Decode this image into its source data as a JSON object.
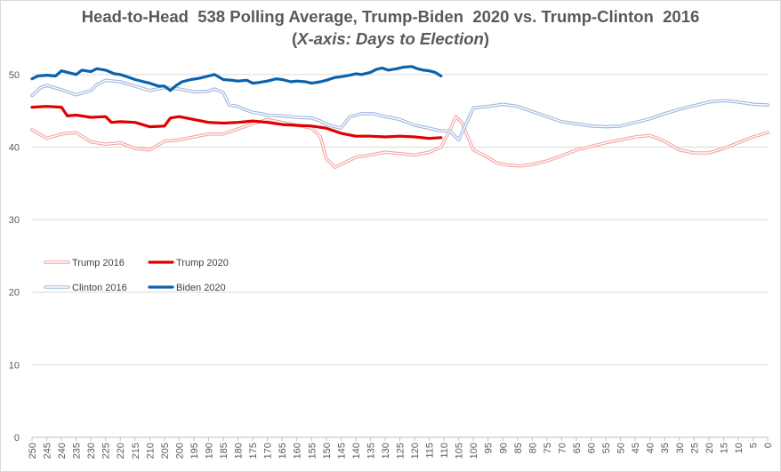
{
  "chart_data": {
    "type": "line",
    "title": "Head-to-Head  538 Polling Average, Trump-Biden  2020 vs. Trump-Clinton  2016",
    "subtitle": "(X-axis: Days to Election)",
    "subtitle_open": "(",
    "subtitle_italic": "X-axis: Days to Election",
    "subtitle_close": ")",
    "xlabel": "",
    "ylabel": "",
    "x_reversed": true,
    "xlim": [
      250,
      0
    ],
    "ylim": [
      0,
      55
    ],
    "y_ticks": [
      0,
      10,
      20,
      30,
      40,
      50
    ],
    "x_tick_step": 5,
    "grid": "horizontal",
    "legend_position": "left-middle",
    "series": [
      {
        "name": "Trump 2016",
        "color": "#f4a4a4",
        "style": "double",
        "points": [
          [
            250,
            42.4
          ],
          [
            245,
            41.2
          ],
          [
            240,
            41.8
          ],
          [
            235,
            42.0
          ],
          [
            230,
            40.7
          ],
          [
            225,
            40.4
          ],
          [
            220,
            40.6
          ],
          [
            215,
            39.8
          ],
          [
            210,
            39.6
          ],
          [
            205,
            40.8
          ],
          [
            200,
            41.0
          ],
          [
            195,
            41.4
          ],
          [
            190,
            41.8
          ],
          [
            185,
            41.8
          ],
          [
            180,
            42.5
          ],
          [
            175,
            43.2
          ],
          [
            170,
            43.8
          ],
          [
            165,
            43.4
          ],
          [
            160,
            43.0
          ],
          [
            155,
            42.6
          ],
          [
            152,
            41.4
          ],
          [
            150,
            38.4
          ],
          [
            147,
            37.2
          ],
          [
            144,
            37.8
          ],
          [
            140,
            38.6
          ],
          [
            135,
            38.9
          ],
          [
            130,
            39.3
          ],
          [
            125,
            39.1
          ],
          [
            120,
            38.9
          ],
          [
            115,
            39.3
          ],
          [
            111,
            40.0
          ],
          [
            108,
            42.3
          ],
          [
            106,
            44.2
          ],
          [
            104,
            43.4
          ],
          [
            102,
            41.5
          ],
          [
            100,
            39.6
          ],
          [
            96,
            38.8
          ],
          [
            92,
            37.8
          ],
          [
            88,
            37.5
          ],
          [
            84,
            37.4
          ],
          [
            80,
            37.6
          ],
          [
            75,
            38.1
          ],
          [
            70,
            38.8
          ],
          [
            65,
            39.6
          ],
          [
            60,
            40.1
          ],
          [
            55,
            40.6
          ],
          [
            50,
            41.0
          ],
          [
            45,
            41.4
          ],
          [
            40,
            41.6
          ],
          [
            35,
            40.8
          ],
          [
            30,
            39.6
          ],
          [
            25,
            39.2
          ],
          [
            20,
            39.2
          ],
          [
            15,
            39.8
          ],
          [
            10,
            40.6
          ],
          [
            5,
            41.4
          ],
          [
            0,
            42.0
          ]
        ]
      },
      {
        "name": "Trump 2020",
        "color": "#e00000",
        "style": "solid",
        "points": [
          [
            250,
            45.5
          ],
          [
            245,
            45.6
          ],
          [
            240,
            45.5
          ],
          [
            238,
            44.3
          ],
          [
            235,
            44.4
          ],
          [
            230,
            44.1
          ],
          [
            225,
            44.2
          ],
          [
            223,
            43.4
          ],
          [
            220,
            43.5
          ],
          [
            215,
            43.4
          ],
          [
            210,
            42.8
          ],
          [
            205,
            42.9
          ],
          [
            203,
            44.0
          ],
          [
            200,
            44.2
          ],
          [
            195,
            43.8
          ],
          [
            190,
            43.4
          ],
          [
            185,
            43.3
          ],
          [
            180,
            43.4
          ],
          [
            175,
            43.6
          ],
          [
            170,
            43.4
          ],
          [
            165,
            43.1
          ],
          [
            160,
            43.0
          ],
          [
            155,
            42.9
          ],
          [
            150,
            42.6
          ],
          [
            145,
            41.9
          ],
          [
            140,
            41.5
          ],
          [
            135,
            41.5
          ],
          [
            130,
            41.4
          ],
          [
            125,
            41.5
          ],
          [
            120,
            41.4
          ],
          [
            115,
            41.2
          ],
          [
            111,
            41.3
          ]
        ]
      },
      {
        "name": "Clinton 2016",
        "color": "#9fb6de",
        "style": "double",
        "points": [
          [
            250,
            47.1
          ],
          [
            247,
            48.2
          ],
          [
            245,
            48.5
          ],
          [
            240,
            47.9
          ],
          [
            235,
            47.2
          ],
          [
            230,
            47.8
          ],
          [
            228,
            48.6
          ],
          [
            225,
            49.2
          ],
          [
            220,
            49.0
          ],
          [
            215,
            48.4
          ],
          [
            210,
            47.8
          ],
          [
            205,
            48.2
          ],
          [
            200,
            48.0
          ],
          [
            195,
            47.6
          ],
          [
            190,
            47.7
          ],
          [
            188,
            48.0
          ],
          [
            185,
            47.5
          ],
          [
            183,
            45.8
          ],
          [
            180,
            45.6
          ],
          [
            178,
            45.2
          ],
          [
            175,
            44.8
          ],
          [
            172,
            44.6
          ],
          [
            170,
            44.4
          ],
          [
            165,
            44.3
          ],
          [
            160,
            44.1
          ],
          [
            155,
            44.0
          ],
          [
            152,
            43.6
          ],
          [
            150,
            43.1
          ],
          [
            147,
            42.8
          ],
          [
            145,
            42.6
          ],
          [
            142,
            44.2
          ],
          [
            138,
            44.6
          ],
          [
            134,
            44.6
          ],
          [
            130,
            44.2
          ],
          [
            125,
            43.8
          ],
          [
            120,
            43.0
          ],
          [
            115,
            42.6
          ],
          [
            112,
            42.3
          ],
          [
            108,
            42.2
          ],
          [
            105,
            41.0
          ],
          [
            102,
            43.6
          ],
          [
            100,
            45.4
          ],
          [
            95,
            45.6
          ],
          [
            90,
            45.9
          ],
          [
            85,
            45.6
          ],
          [
            80,
            44.9
          ],
          [
            75,
            44.2
          ],
          [
            70,
            43.5
          ],
          [
            65,
            43.2
          ],
          [
            60,
            42.9
          ],
          [
            55,
            42.8
          ],
          [
            50,
            42.9
          ],
          [
            45,
            43.4
          ],
          [
            40,
            43.9
          ],
          [
            35,
            44.6
          ],
          [
            30,
            45.2
          ],
          [
            25,
            45.7
          ],
          [
            20,
            46.2
          ],
          [
            15,
            46.4
          ],
          [
            10,
            46.2
          ],
          [
            5,
            45.9
          ],
          [
            0,
            45.8
          ]
        ]
      },
      {
        "name": "Biden 2020",
        "color": "#0a62ae",
        "style": "solid",
        "points": [
          [
            250,
            49.4
          ],
          [
            248,
            49.8
          ],
          [
            245,
            49.9
          ],
          [
            242,
            49.8
          ],
          [
            240,
            50.5
          ],
          [
            237,
            50.2
          ],
          [
            235,
            50.0
          ],
          [
            233,
            50.6
          ],
          [
            230,
            50.4
          ],
          [
            228,
            50.8
          ],
          [
            225,
            50.6
          ],
          [
            222,
            50.1
          ],
          [
            220,
            50.0
          ],
          [
            217,
            49.6
          ],
          [
            215,
            49.3
          ],
          [
            212,
            49.0
          ],
          [
            210,
            48.8
          ],
          [
            207,
            48.4
          ],
          [
            205,
            48.4
          ],
          [
            203,
            47.8
          ],
          [
            201,
            48.5
          ],
          [
            199,
            49.0
          ],
          [
            196,
            49.3
          ],
          [
            193,
            49.5
          ],
          [
            190,
            49.8
          ],
          [
            188,
            50.0
          ],
          [
            185,
            49.3
          ],
          [
            182,
            49.2
          ],
          [
            180,
            49.1
          ],
          [
            177,
            49.2
          ],
          [
            175,
            48.8
          ],
          [
            173,
            48.9
          ],
          [
            170,
            49.1
          ],
          [
            167,
            49.4
          ],
          [
            165,
            49.3
          ],
          [
            162,
            49.0
          ],
          [
            160,
            49.1
          ],
          [
            157,
            49.0
          ],
          [
            155,
            48.8
          ],
          [
            152,
            49.0
          ],
          [
            150,
            49.2
          ],
          [
            147,
            49.6
          ],
          [
            145,
            49.7
          ],
          [
            142,
            49.9
          ],
          [
            140,
            50.1
          ],
          [
            138,
            50.0
          ],
          [
            135,
            50.3
          ],
          [
            133,
            50.7
          ],
          [
            131,
            50.9
          ],
          [
            129,
            50.6
          ],
          [
            126,
            50.8
          ],
          [
            124,
            51.0
          ],
          [
            121,
            51.1
          ],
          [
            119,
            50.8
          ],
          [
            117,
            50.6
          ],
          [
            115,
            50.5
          ],
          [
            113,
            50.3
          ],
          [
            111,
            49.8
          ]
        ]
      }
    ],
    "legend": [
      {
        "name": "Trump 2016",
        "color": "#f4a4a4",
        "style": "double"
      },
      {
        "name": "Trump 2020",
        "color": "#e00000",
        "style": "solid"
      },
      {
        "name": "Clinton 2016",
        "color": "#9fb6de",
        "style": "double"
      },
      {
        "name": "Biden 2020",
        "color": "#0a62ae",
        "style": "solid"
      }
    ]
  }
}
